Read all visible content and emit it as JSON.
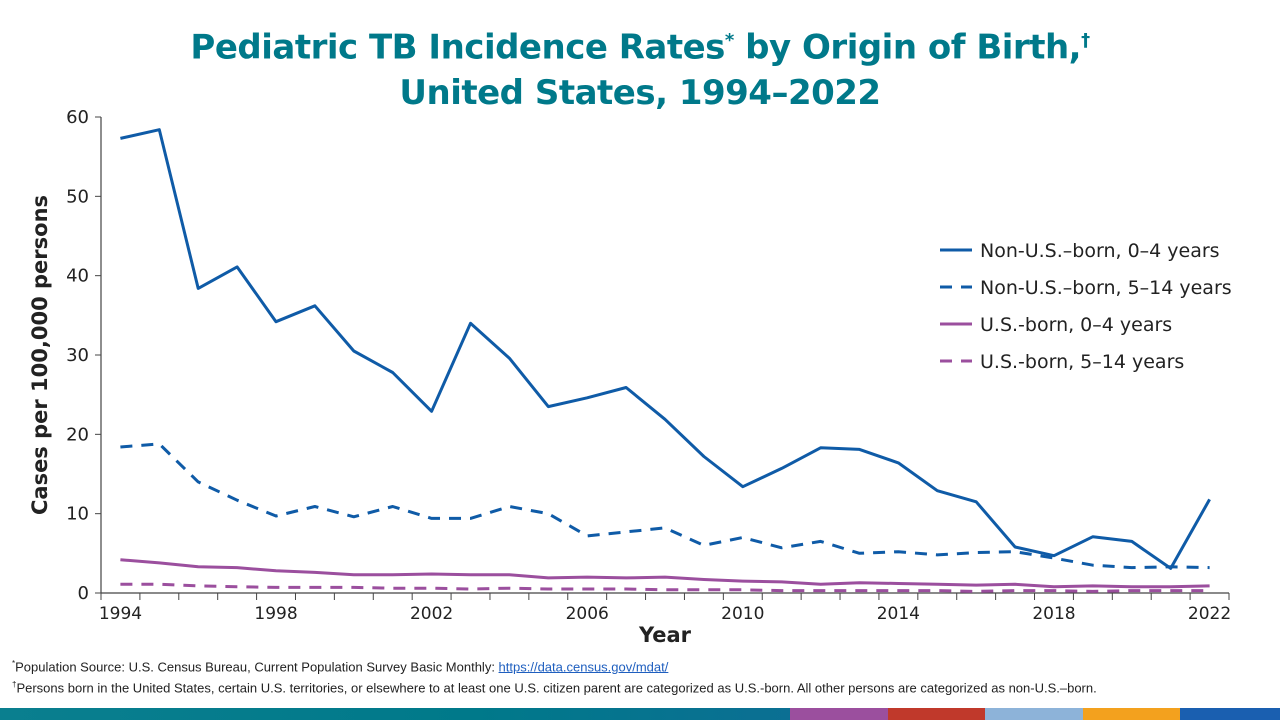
{
  "chart_data": {
    "type": "line",
    "title_line1": "Pediatric TB Incidence Rates",
    "title_mark1": "*",
    "title_mid": " by Origin of Birth,",
    "title_mark2": "†",
    "title_line2": "United States, 1994–2022",
    "xlabel": "Year",
    "ylabel": "Cases per 100,000 persons",
    "ylim": [
      0,
      60
    ],
    "yticks": [
      0,
      10,
      20,
      30,
      40,
      50,
      60
    ],
    "xtick_labels": [
      "1994",
      "1998",
      "2002",
      "2006",
      "2010",
      "2014",
      "2018",
      "2022"
    ],
    "x": [
      1994,
      1995,
      1996,
      1997,
      1998,
      1999,
      2000,
      2001,
      2002,
      2003,
      2004,
      2005,
      2006,
      2007,
      2008,
      2009,
      2010,
      2011,
      2012,
      2013,
      2014,
      2015,
      2016,
      2017,
      2018,
      2019,
      2020,
      2021,
      2022
    ],
    "legend_position": "right",
    "grid": false,
    "series": [
      {
        "name": "Non-U.S.–born, 0–4 years",
        "color": "#0f5ba7",
        "dash": false,
        "values": [
          57.3,
          58.4,
          38.4,
          41.1,
          34.2,
          36.2,
          30.5,
          27.8,
          22.9,
          34.0,
          29.6,
          23.5,
          24.6,
          25.9,
          21.9,
          17.2,
          13.4,
          15.7,
          18.3,
          18.1,
          16.4,
          12.9,
          11.5,
          5.8,
          4.7,
          7.1,
          6.5,
          3.1,
          11.8
        ]
      },
      {
        "name": "Non-U.S.–born, 5–14 years",
        "color": "#0f5ba7",
        "dash": true,
        "values": [
          18.4,
          18.8,
          14.0,
          11.7,
          9.7,
          10.9,
          9.6,
          10.9,
          9.4,
          9.4,
          10.9,
          10.0,
          7.2,
          7.7,
          8.2,
          6.0,
          7.0,
          5.7,
          6.5,
          5.0,
          5.2,
          4.8,
          5.1,
          5.2,
          4.4,
          3.5,
          3.2,
          3.3,
          3.2
        ]
      },
      {
        "name": "U.S.-born, 0–4 years",
        "color": "#9b4f9e",
        "dash": false,
        "values": [
          4.2,
          3.8,
          3.3,
          3.2,
          2.8,
          2.6,
          2.3,
          2.3,
          2.4,
          2.3,
          2.3,
          1.9,
          2.0,
          1.9,
          2.0,
          1.7,
          1.5,
          1.4,
          1.1,
          1.3,
          1.2,
          1.1,
          1.0,
          1.1,
          0.8,
          0.9,
          0.8,
          0.8,
          0.9
        ]
      },
      {
        "name": "U.S.-born, 5–14 years",
        "color": "#9b4f9e",
        "dash": true,
        "values": [
          1.1,
          1.1,
          0.9,
          0.8,
          0.7,
          0.7,
          0.7,
          0.6,
          0.6,
          0.5,
          0.6,
          0.5,
          0.5,
          0.5,
          0.4,
          0.4,
          0.4,
          0.3,
          0.3,
          0.3,
          0.3,
          0.3,
          0.2,
          0.3,
          0.3,
          0.2,
          0.3,
          0.3,
          0.3
        ]
      }
    ]
  },
  "footnotes": {
    "note1_mark": "*",
    "note1_text": "Population Source: U.S. Census Bureau, Current Population Survey Basic Monthly: ",
    "note1_link": "https://data.census.gov/mdat/",
    "note2_mark": "†",
    "note2_text": "Persons born  in the United States, certain U.S. territories, or elsewhere to at least one U.S. citizen parent are categorized as U.S.-born. All other persons are categorized as non-U.S.–born."
  },
  "bottom_bar_colors": [
    "#00798a",
    "#9b4f9e",
    "#c0392b",
    "#8db3d9",
    "#f3a11e",
    "#1a5fb0"
  ]
}
